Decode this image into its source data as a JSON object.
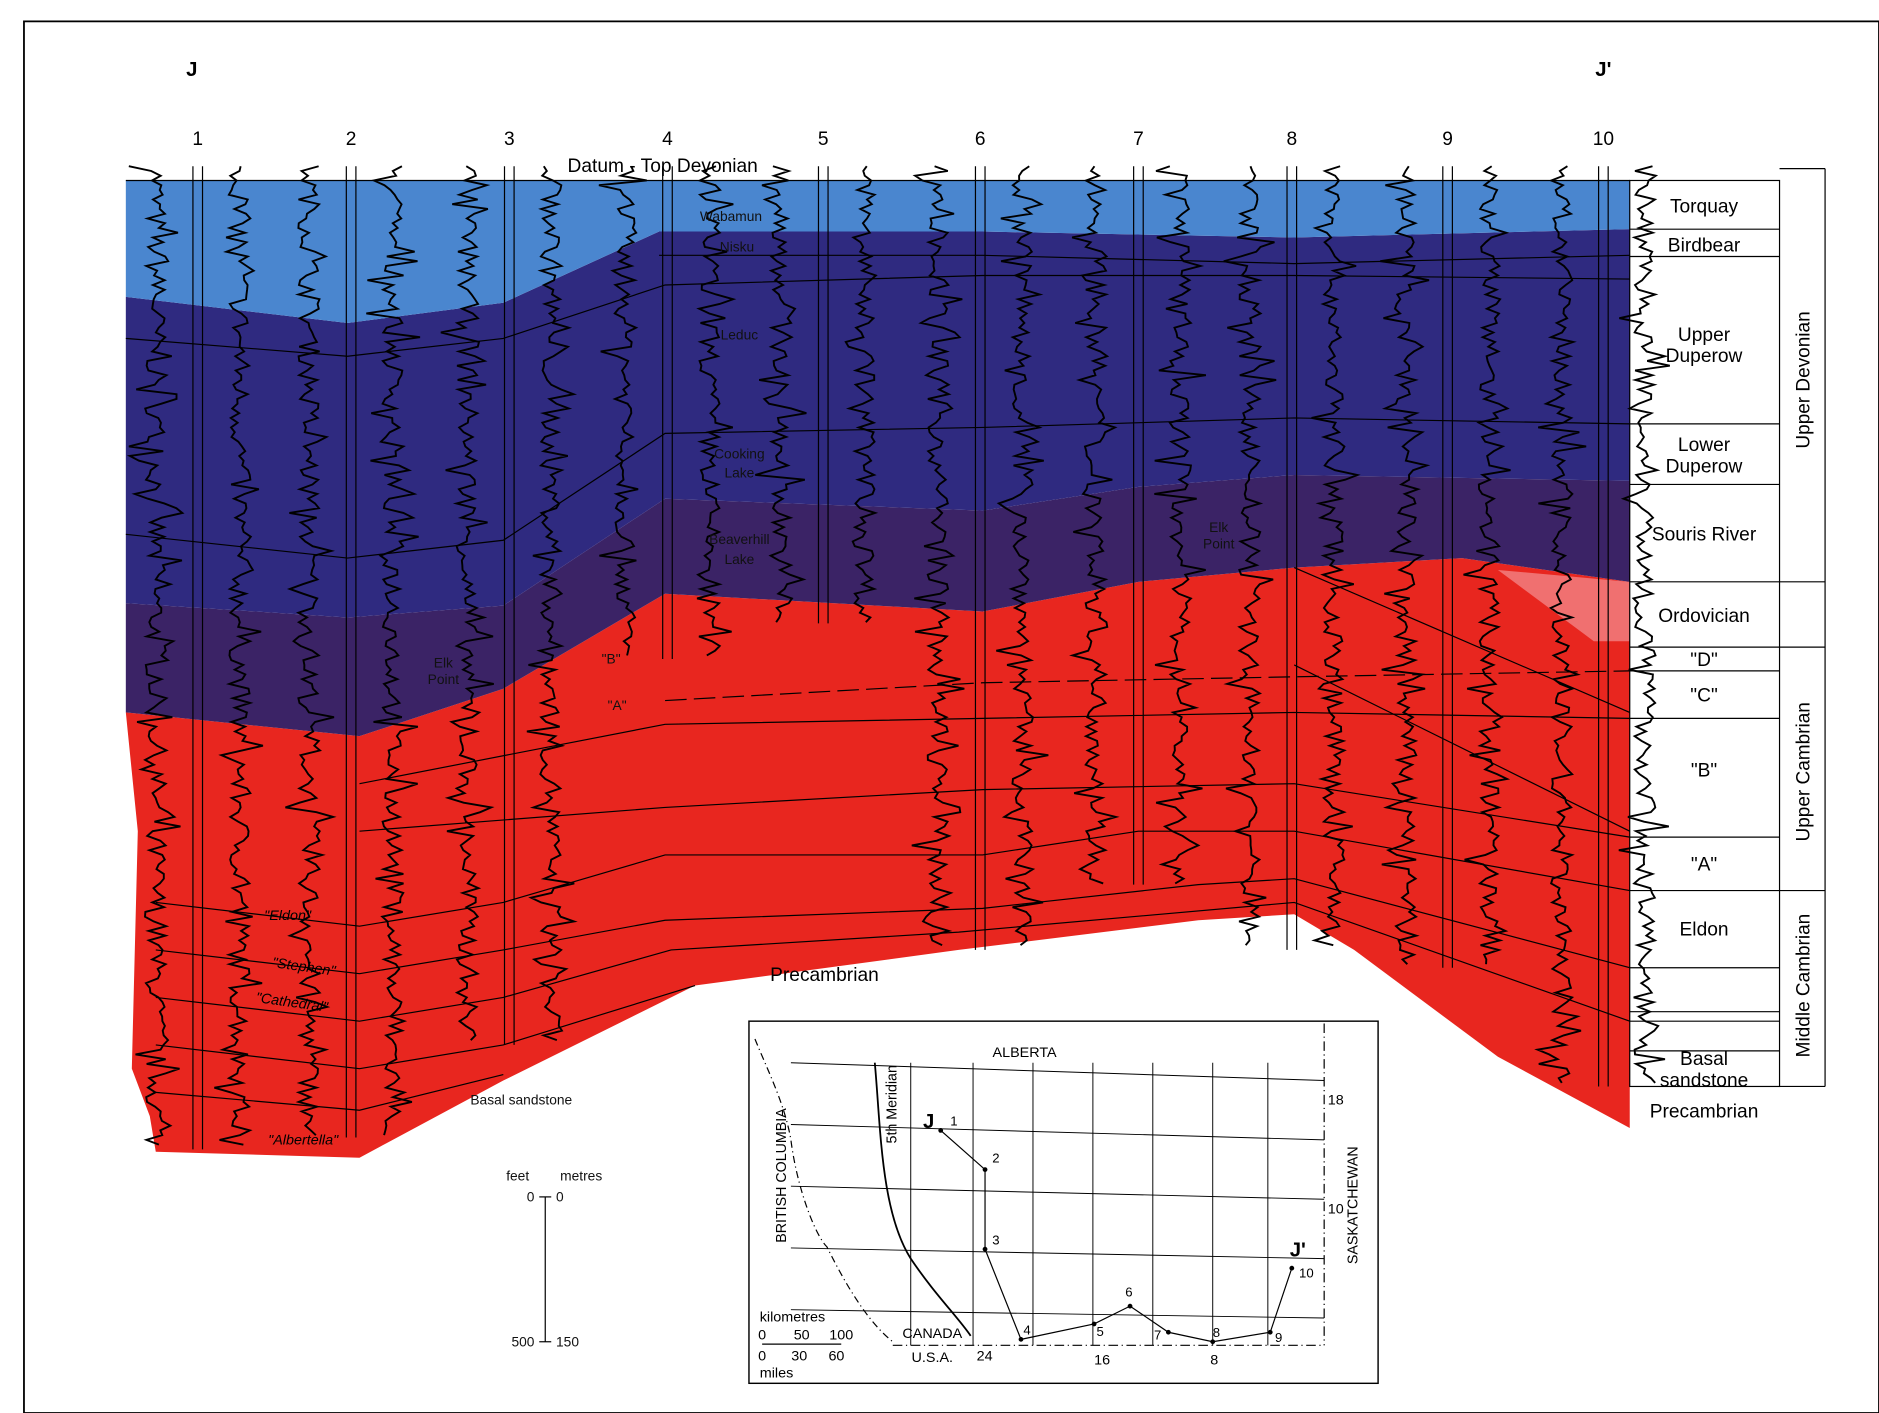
{
  "section": {
    "start": "J",
    "end": "J'",
    "datum": "Datum - Top Devonian",
    "wells": [
      "1",
      "2",
      "3",
      "4",
      "5",
      "6",
      "7",
      "8",
      "9",
      "10"
    ]
  },
  "formation_labels": {
    "wabamun": "Wabamun",
    "nisku": "Nisku",
    "leduc": "Leduc",
    "cooking_lake": [
      "Cooking",
      "Lake"
    ],
    "beaverhill_lake": [
      "Beaverhill",
      "Lake"
    ],
    "elk_point_left": [
      "Elk",
      "Point"
    ],
    "elk_point_right": [
      "Elk",
      "Point"
    ],
    "b": "\"B\"",
    "a": "\"A\"",
    "eldon": "\"Eldon\"",
    "stephen": "\"Stephen\"",
    "cathedral": "\"Cathedral\"",
    "albertella": "\"Albertella\"",
    "basal_sandstone": "Basal sandstone",
    "precambrian": "Precambrian"
  },
  "column": {
    "units": {
      "torquay": [
        "Torquay"
      ],
      "birdbear": [
        "Birdbear"
      ],
      "upper_duperow": [
        "Upper",
        "Duperow"
      ],
      "lower_duperow": [
        "Lower",
        "Duperow"
      ],
      "souris_river": [
        "Souris River"
      ],
      "ordovician": [
        "Ordovician"
      ],
      "d": [
        "\"D\""
      ],
      "c": [
        "\"C\""
      ],
      "b": [
        "\"B\""
      ],
      "a": [
        "\"A\""
      ],
      "eldon": [
        "Eldon"
      ],
      "basal_sandstone": [
        "Basal",
        "sandstone"
      ],
      "precambrian": [
        "Precambrian"
      ]
    },
    "periods": [
      "Upper Devonian",
      "Upper Cambrian",
      "Middle Cambrian"
    ]
  },
  "scale": {
    "feet": "feet",
    "metres": "metres",
    "feet_ticks": [
      "0",
      "500"
    ],
    "metre_ticks": [
      "0",
      "150"
    ]
  },
  "map": {
    "alberta": "ALBERTA",
    "british_columbia": "BRITISH COLUMBIA",
    "saskatchewan": "SASKATCHEWAN",
    "meridian": "5th Meridian",
    "canada": "CANADA",
    "usa": "U.S.A.",
    "start": "J",
    "end": "J'",
    "wells": [
      "1",
      "2",
      "3",
      "4",
      "5",
      "6",
      "7",
      "8",
      "9",
      "10"
    ],
    "townships": [
      "18",
      "10"
    ],
    "ranges": [
      "24",
      "16",
      "8"
    ],
    "kilometres": "kilometres",
    "km_ticks": [
      "0",
      "50",
      "100"
    ],
    "miles": "miles",
    "mile_ticks": [
      "0",
      "30",
      "60"
    ]
  }
}
